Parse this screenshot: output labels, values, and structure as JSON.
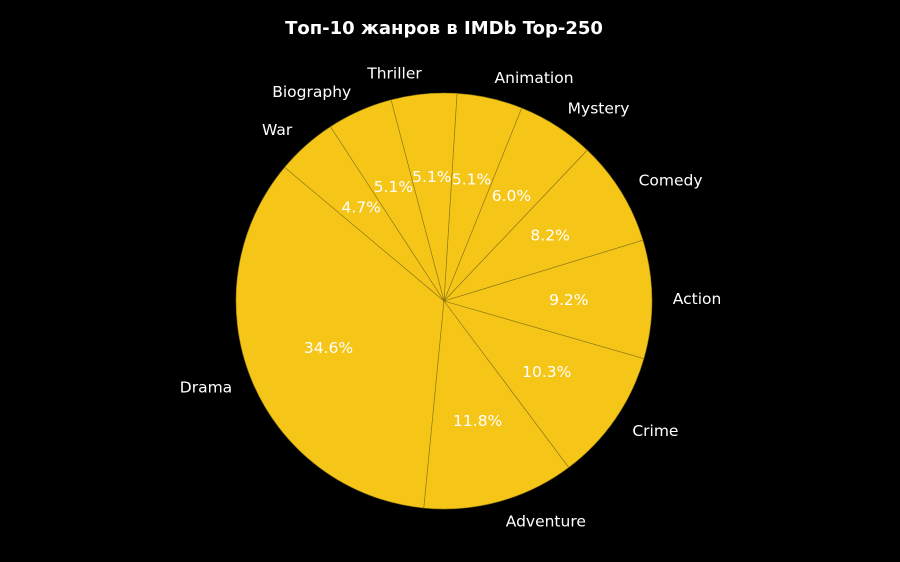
{
  "chart_data": {
    "type": "pie",
    "title": "Топ-10 жанров в IMDb Top-250",
    "categories": [
      "Drama",
      "Adventure",
      "Crime",
      "Action",
      "Comedy",
      "Mystery",
      "Animation",
      "Thriller",
      "Biography",
      "War"
    ],
    "values": [
      34.6,
      11.8,
      10.3,
      9.2,
      8.2,
      6.0,
      5.1,
      5.1,
      5.1,
      4.7
    ],
    "value_labels": [
      "34.6%",
      "11.8%",
      "10.3%",
      "9.2%",
      "8.2%",
      "6.0%",
      "5.1%",
      "5.1%",
      "5.1%",
      "4.7%"
    ],
    "start_angle_deg": 140,
    "direction": "counterclockwise",
    "slice_color": "#F5C518",
    "edge_color": "#8a7414",
    "background": "#000000",
    "text_color": "#ffffff"
  }
}
